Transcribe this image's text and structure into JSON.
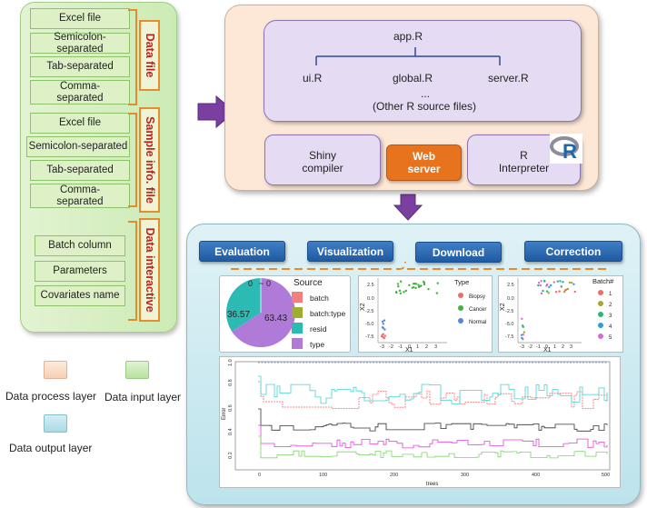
{
  "input_layer": {
    "groups": [
      {
        "title": "Data file",
        "items": [
          "Excel file",
          "Semicolon-separated",
          "Tab-separated",
          "Comma-separated"
        ]
      },
      {
        "title": "Sample info. file",
        "items": [
          "Excel file",
          "Semicolon-separated",
          "Tab-separated",
          "Comma-separated"
        ]
      },
      {
        "title": "Data interactive",
        "items": [
          "Batch column",
          "Parameters",
          "Covariates name"
        ]
      }
    ]
  },
  "process_layer": {
    "files": {
      "app": "app.R",
      "ui": "ui.R",
      "global": "global.R",
      "server": "server.R",
      "ellipsis": "...",
      "other": "(Other R source files)"
    },
    "shiny": "Shiny compiler",
    "web_server": "Web server",
    "r_interp": "R Interpreter",
    "r_logo": "R"
  },
  "output_layer": {
    "buttons": [
      "Evaluation",
      "Visualization",
      "Download",
      "Correction"
    ],
    "pie": {
      "labels": [
        "0",
        "0"
      ],
      "legend_title": "Source",
      "legend": [
        "batch",
        "batch:type",
        "resid",
        "type"
      ],
      "values": [
        0,
        0,
        36.57,
        63.43
      ],
      "value_labels": [
        "36.57",
        "63.43"
      ],
      "colors": [
        "#f08080",
        "#9cad2f",
        "#2bbbb4",
        "#b07ad8"
      ]
    },
    "scatter1": {
      "ylabel": "X2",
      "xlabel": "X1",
      "legend_title": "Type",
      "legend": [
        "Biopsy",
        "Cancer",
        "Normal"
      ],
      "yticks": [
        "2.5",
        "0.0",
        "-2.5",
        "-5.0",
        "-7.5"
      ],
      "xticks": [
        "-3",
        "-2",
        "-1",
        "0",
        "1",
        "2",
        "3"
      ]
    },
    "scatter2": {
      "ylabel": "X2",
      "xlabel": "X1",
      "legend_title": "Batch#",
      "legend": [
        "1",
        "2",
        "3",
        "4",
        "5"
      ],
      "yticks": [
        "2.5",
        "0.0",
        "-2.5",
        "-5.0",
        "-7.5"
      ],
      "xticks": [
        "-3",
        "-2",
        "-1",
        "0",
        "1",
        "2",
        "3"
      ]
    },
    "error_plot": {
      "ylabel": "Error",
      "xlabel": "trees",
      "yticks": [
        "1.0",
        "0.8",
        "0.6",
        "0.4",
        "0.2"
      ],
      "xticks": [
        "0",
        "100",
        "200",
        "300",
        "400",
        "500"
      ]
    }
  },
  "legend": {
    "process": "Data process layer",
    "input": "Data input layer",
    "output": "Data output layer"
  },
  "colors": {
    "arrow": "#7b3fa0",
    "bracket": "#e88b2c",
    "label_text": "#c0221b",
    "web_server": "#e8731f"
  }
}
